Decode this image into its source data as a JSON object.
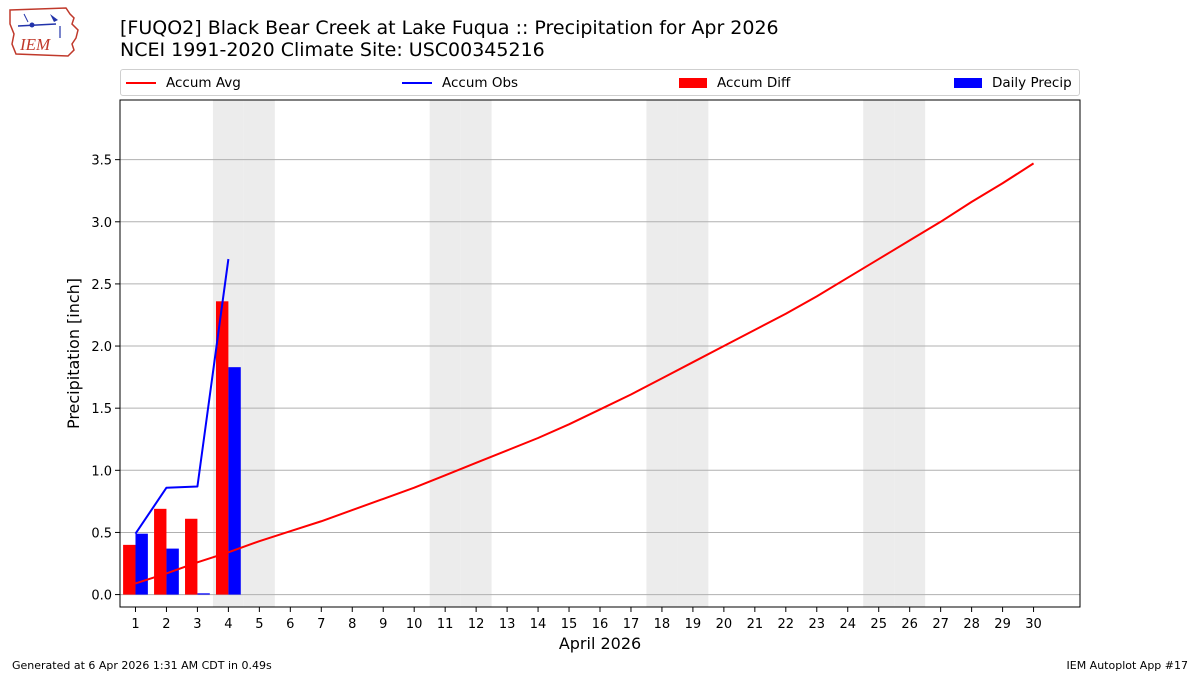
{
  "header": {
    "title_line1": "[FUQO2] Black Bear Creek at Lake Fuqua :: Precipitation for Apr 2026",
    "title_line2": "NCEI 1991-2020 Climate Site: USC00345216"
  },
  "logo": {
    "text": "IEM",
    "icon": "iem-iowa-logo-icon"
  },
  "legend": {
    "accum_avg": "Accum Avg",
    "accum_obs": "Accum Obs",
    "accum_diff": "Accum Diff",
    "daily_precip": "Daily Precip"
  },
  "footer": {
    "generated": "Generated at 6 Apr 2026 1:31 AM CDT in 0.49s",
    "app": "IEM Autoplot App #17"
  },
  "colors": {
    "accum_avg": "#ff0000",
    "accum_obs": "#0000ff",
    "accum_diff": "#ff0000",
    "daily_precip": "#0000ff",
    "weekend_shade": "#ececec",
    "grid": "#b0b0b0"
  },
  "chart_data": {
    "type": "bar",
    "xlabel": "April 2026",
    "ylabel": "Precipitation [inch]",
    "xlim": [
      0.5,
      31.5
    ],
    "ylim": [
      -0.1,
      3.98
    ],
    "yticks": [
      0.0,
      0.5,
      1.0,
      1.5,
      2.0,
      2.5,
      3.0,
      3.5
    ],
    "ytick_labels": [
      "0.0",
      "0.5",
      "1.0",
      "1.5",
      "2.0",
      "2.5",
      "3.0",
      "3.5"
    ],
    "days": [
      1,
      2,
      3,
      4,
      5,
      6,
      7,
      8,
      9,
      10,
      11,
      12,
      13,
      14,
      15,
      16,
      17,
      18,
      19,
      20,
      21,
      22,
      23,
      24,
      25,
      26,
      27,
      28,
      29,
      30
    ],
    "weekend_days": [
      4,
      5,
      11,
      12,
      18,
      19,
      25,
      26
    ],
    "grid": "y-major",
    "legend_position": "top",
    "series": [
      {
        "name": "Accum Avg",
        "kind": "line",
        "color": "#ff0000",
        "x": [
          1,
          2,
          3,
          4,
          5,
          6,
          7,
          8,
          9,
          10,
          11,
          12,
          13,
          14,
          15,
          16,
          17,
          18,
          19,
          20,
          21,
          22,
          23,
          24,
          25,
          26,
          27,
          28,
          29,
          30
        ],
        "values": [
          0.09,
          0.17,
          0.26,
          0.34,
          0.43,
          0.51,
          0.59,
          0.68,
          0.77,
          0.86,
          0.96,
          1.06,
          1.16,
          1.26,
          1.37,
          1.49,
          1.61,
          1.74,
          1.87,
          2.0,
          2.13,
          2.26,
          2.4,
          2.55,
          2.7,
          2.85,
          3.0,
          3.16,
          3.31,
          3.47
        ]
      },
      {
        "name": "Accum Obs",
        "kind": "line",
        "color": "#0000ff",
        "x": [
          1,
          2,
          3,
          4
        ],
        "values": [
          0.49,
          0.86,
          0.87,
          2.7
        ]
      },
      {
        "name": "Accum Diff",
        "kind": "bar",
        "color": "#ff0000",
        "offset": "left",
        "x": [
          1,
          2,
          3,
          4
        ],
        "values": [
          0.4,
          0.69,
          0.61,
          2.36
        ]
      },
      {
        "name": "Daily Precip",
        "kind": "bar",
        "color": "#0000ff",
        "offset": "right",
        "x": [
          1,
          2,
          3,
          4
        ],
        "values": [
          0.49,
          0.37,
          0.01,
          1.83
        ]
      }
    ]
  }
}
